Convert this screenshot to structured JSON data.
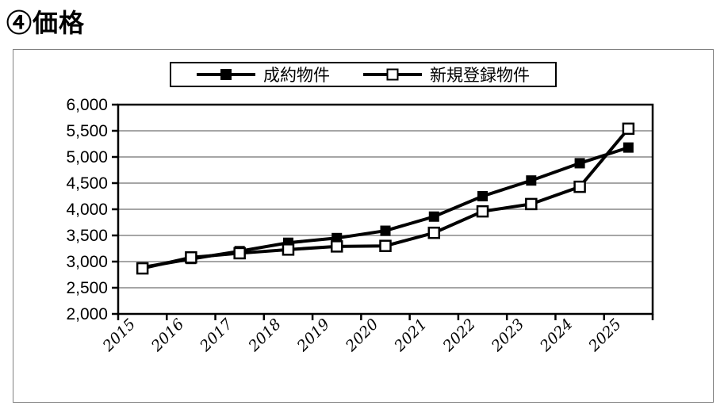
{
  "page": {
    "title": "④価格"
  },
  "chart_data": {
    "type": "line",
    "title": "④価格",
    "categories": [
      "2015",
      "2016",
      "2017",
      "2018",
      "2019",
      "2020",
      "2021",
      "2022",
      "2023",
      "2024",
      "2025"
    ],
    "series": [
      {
        "name": "成約物件",
        "marker": "filled-square",
        "color": "#000000",
        "values": [
          2890,
          3050,
          3200,
          3360,
          3450,
          3590,
          3860,
          4250,
          4550,
          4880,
          5180
        ]
      },
      {
        "name": "新規登録物件",
        "marker": "open-square",
        "color": "#000000",
        "values": [
          2870,
          3080,
          3160,
          3230,
          3290,
          3300,
          3550,
          3960,
          4100,
          4430,
          5540
        ]
      }
    ],
    "xlabel": "",
    "ylabel": "",
    "ylim": [
      2000,
      6000
    ],
    "ytick_step": 500,
    "grid": "horizontal",
    "gridline_color": "#a6a6a6",
    "frame_color": "#000000",
    "legend_position": "top-center"
  }
}
